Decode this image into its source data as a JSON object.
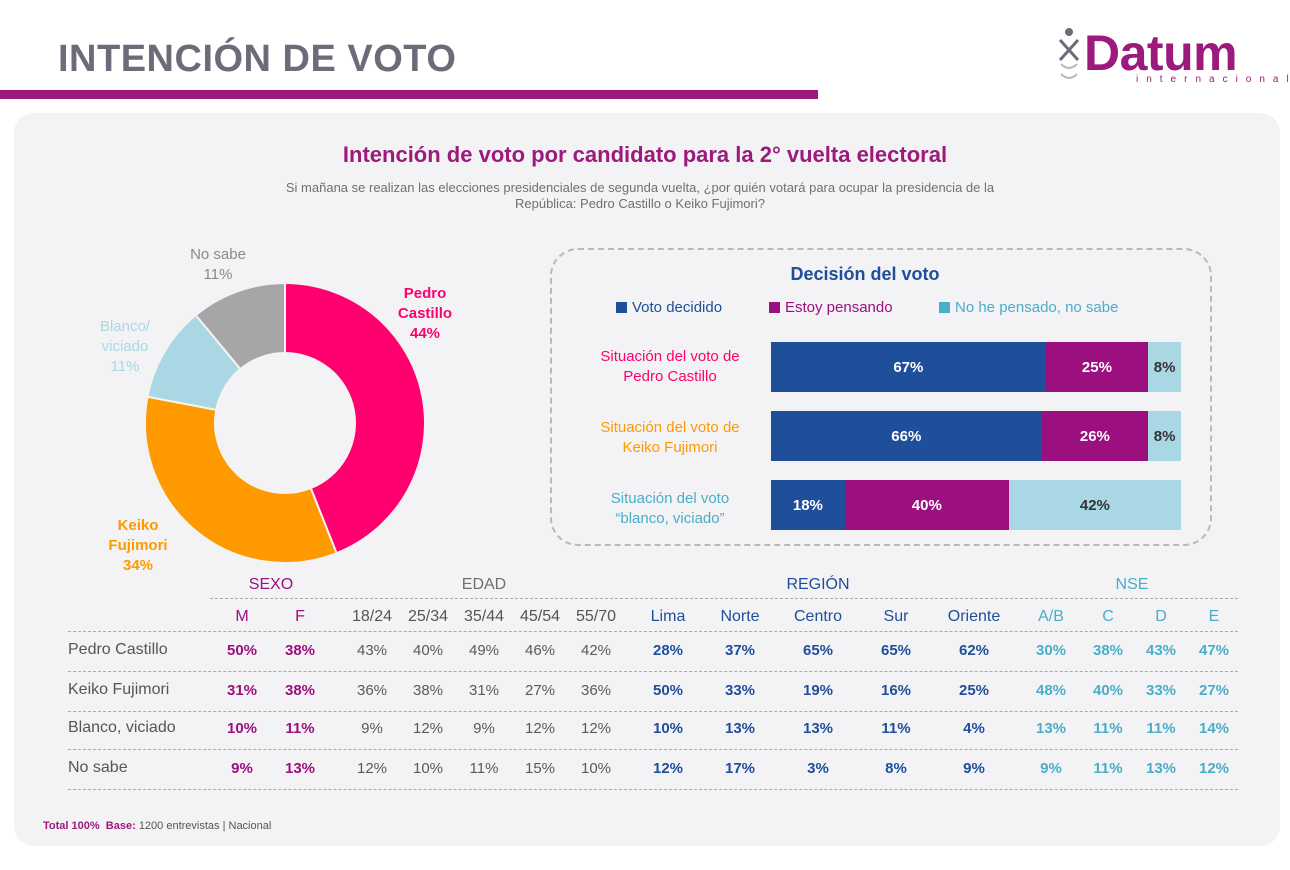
{
  "header": {
    "title": "INTENCIÓN DE VOTO",
    "logo_word": "Datum",
    "logo_sub": "internacional"
  },
  "colors": {
    "castillo": "#ff006e",
    "fujimori": "#ff9900",
    "blanco": "#a9d8e4",
    "nosabe": "#a6a6a6",
    "decidido": "#1f4e9a",
    "pensando": "#9c0f7f",
    "nohe": "#a9d8e4",
    "brand": "#9c1a7c"
  },
  "chart_data": [
    {
      "type": "pie",
      "title": "Intención de voto por candidato para la 2° vuelta electoral",
      "subtitle_line1": "Si mañana se realizan las elecciones presidenciales de segunda vuelta, ¿por quién votará para ocupar la presidencia de la",
      "subtitle_line2": "República:  Pedro Castillo o Keiko Fujimori?",
      "slices": [
        {
          "label1": "Pedro",
          "label2": "Castillo",
          "value": 44,
          "pct": "44%"
        },
        {
          "label1": "Keiko",
          "label2": "Fujimori",
          "value": 34,
          "pct": "34%"
        },
        {
          "label1": "Blanco/",
          "label2": "viciado",
          "value": 11,
          "pct": "11%"
        },
        {
          "label1": "No sabe",
          "label2": "",
          "value": 11,
          "pct": "11%"
        }
      ]
    },
    {
      "type": "bar",
      "title": "Decisión del voto",
      "legend": [
        "Voto decidido",
        "Estoy pensando",
        "No he pensado, no sabe"
      ],
      "rows": [
        {
          "label1": "Situación del voto de",
          "label2": "Pedro Castillo",
          "values": [
            67,
            25,
            8
          ],
          "texts": [
            "67%",
            "25%",
            "8%"
          ]
        },
        {
          "label1": "Situación del voto de",
          "label2": "Keiko Fujimori",
          "values": [
            66,
            26,
            8
          ],
          "texts": [
            "66%",
            "26%",
            "8%"
          ]
        },
        {
          "label1": "Situación del voto",
          "label2": "“blanco, viciado”",
          "values": [
            18,
            40,
            42
          ],
          "texts": [
            "18%",
            "40%",
            "42%"
          ]
        }
      ]
    },
    {
      "type": "table",
      "groups": [
        "SEXO",
        "EDAD",
        "REGIÓN",
        "NSE"
      ],
      "columns": [
        "M",
        "F",
        "18/24",
        "25/34",
        "35/44",
        "45/54",
        "55/70",
        "Lima",
        "Norte",
        "Centro",
        "Sur",
        "Oriente",
        "A/B",
        "C",
        "D",
        "E"
      ],
      "rows": [
        {
          "name": "Pedro Castillo",
          "values": [
            "50%",
            "38%",
            "43%",
            "40%",
            "49%",
            "46%",
            "42%",
            "28%",
            "37%",
            "65%",
            "65%",
            "62%",
            "30%",
            "38%",
            "43%",
            "47%"
          ]
        },
        {
          "name": "Keiko Fujimori",
          "values": [
            "31%",
            "38%",
            "36%",
            "38%",
            "31%",
            "27%",
            "36%",
            "50%",
            "33%",
            "19%",
            "16%",
            "25%",
            "48%",
            "40%",
            "33%",
            "27%"
          ]
        },
        {
          "name": "Blanco, viciado",
          "values": [
            "10%",
            "11%",
            "9%",
            "12%",
            "9%",
            "12%",
            "12%",
            "10%",
            "13%",
            "13%",
            "11%",
            "4%",
            "13%",
            "11%",
            "11%",
            "14%"
          ]
        },
        {
          "name": "No sabe",
          "values": [
            "9%",
            "13%",
            "12%",
            "10%",
            "11%",
            "15%",
            "10%",
            "12%",
            "17%",
            "3%",
            "8%",
            "9%",
            "9%",
            "11%",
            "13%",
            "12%"
          ]
        }
      ]
    }
  ],
  "footnote": {
    "total": "Total 100%",
    "base_label": "Base:",
    "base_text": "1200 entrevistas | Nacional"
  }
}
